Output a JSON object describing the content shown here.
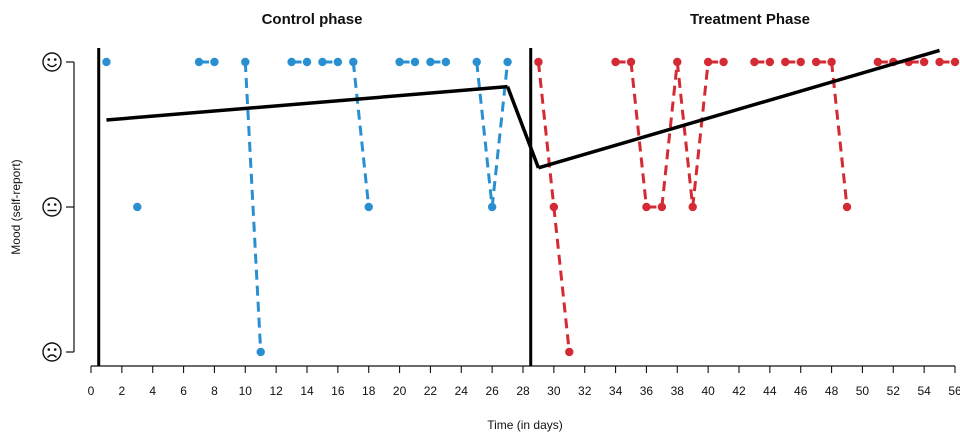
{
  "chart_data": {
    "type": "line",
    "xlabel": "Time (in days)",
    "ylabel": "Mood (self-report)",
    "xlim": [
      0,
      56
    ],
    "x_ticks": [
      0,
      2,
      4,
      6,
      8,
      10,
      12,
      14,
      16,
      18,
      20,
      22,
      24,
      26,
      28,
      30,
      32,
      34,
      36,
      38,
      40,
      42,
      44,
      46,
      48,
      50,
      52,
      54,
      56
    ],
    "y_levels": [
      {
        "value": 1,
        "symbol": "☹",
        "icon": "sad-face-icon"
      },
      {
        "value": 2,
        "symbol": "😐",
        "icon": "neutral-face-icon"
      },
      {
        "value": 3,
        "symbol": "☺",
        "icon": "happy-face-icon"
      }
    ],
    "ylim": [
      1,
      3
    ],
    "phases": [
      {
        "title": "Control phase",
        "start": 0.5,
        "end": 28.5,
        "color": "#2a8fd0"
      },
      {
        "title": "Treatment Phase",
        "start": 28.5,
        "end": 56,
        "color": "#d42a33"
      }
    ],
    "phase_boundaries": [
      0.5,
      28.5
    ],
    "series": [
      {
        "phase": 0,
        "line_style": "dashed",
        "color": "#2a8fd0",
        "points": [
          {
            "x": 1,
            "y": 3
          },
          {
            "x": 3,
            "y": 2
          },
          {
            "x": 7,
            "y": 3
          },
          {
            "x": 8,
            "y": 3
          },
          {
            "x": 10,
            "y": 3
          },
          {
            "x": 11,
            "y": 1
          },
          {
            "x": 13,
            "y": 3
          },
          {
            "x": 14,
            "y": 3
          },
          {
            "x": 15,
            "y": 3
          },
          {
            "x": 16,
            "y": 3
          },
          {
            "x": 17,
            "y": 3
          },
          {
            "x": 18,
            "y": 2
          },
          {
            "x": 20,
            "y": 3
          },
          {
            "x": 21,
            "y": 3
          },
          {
            "x": 22,
            "y": 3
          },
          {
            "x": 23,
            "y": 3
          },
          {
            "x": 25,
            "y": 3
          },
          {
            "x": 26,
            "y": 2
          },
          {
            "x": 27,
            "y": 3
          }
        ],
        "segments": [
          [
            7,
            8
          ],
          [
            10,
            11
          ],
          [
            13,
            14
          ],
          [
            15,
            16
          ],
          [
            17,
            18
          ],
          [
            20,
            21
          ],
          [
            22,
            23
          ],
          [
            25,
            26
          ],
          [
            26,
            27
          ]
        ]
      },
      {
        "phase": 1,
        "line_style": "dashed",
        "color": "#d42a33",
        "points": [
          {
            "x": 29,
            "y": 3
          },
          {
            "x": 30,
            "y": 2
          },
          {
            "x": 31,
            "y": 1
          },
          {
            "x": 34,
            "y": 3
          },
          {
            "x": 35,
            "y": 3
          },
          {
            "x": 36,
            "y": 2
          },
          {
            "x": 37,
            "y": 2
          },
          {
            "x": 38,
            "y": 3
          },
          {
            "x": 39,
            "y": 2
          },
          {
            "x": 40,
            "y": 3
          },
          {
            "x": 41,
            "y": 3
          },
          {
            "x": 43,
            "y": 3
          },
          {
            "x": 44,
            "y": 3
          },
          {
            "x": 45,
            "y": 3
          },
          {
            "x": 46,
            "y": 3
          },
          {
            "x": 47,
            "y": 3
          },
          {
            "x": 48,
            "y": 3
          },
          {
            "x": 49,
            "y": 2
          },
          {
            "x": 51,
            "y": 3
          },
          {
            "x": 52,
            "y": 3
          },
          {
            "x": 53,
            "y": 3
          },
          {
            "x": 54,
            "y": 3
          },
          {
            "x": 55,
            "y": 3
          },
          {
            "x": 56,
            "y": 3
          }
        ],
        "segments": [
          [
            29,
            30
          ],
          [
            30,
            31
          ],
          [
            34,
            35
          ],
          [
            35,
            36
          ],
          [
            36,
            37
          ],
          [
            37,
            38
          ],
          [
            38,
            39
          ],
          [
            39,
            40
          ],
          [
            40,
            41
          ],
          [
            43,
            44
          ],
          [
            45,
            46
          ],
          [
            47,
            48
          ],
          [
            48,
            49
          ],
          [
            51,
            52
          ],
          [
            52,
            53
          ],
          [
            53,
            54
          ],
          [
            55,
            56
          ]
        ]
      }
    ],
    "trend_lines": [
      {
        "color": "#000000",
        "points": [
          {
            "x": 1,
            "y": 2.6
          },
          {
            "x": 27,
            "y": 2.83
          }
        ]
      },
      {
        "color": "#000000",
        "points": [
          {
            "x": 27,
            "y": 2.83
          },
          {
            "x": 29,
            "y": 2.27
          }
        ]
      },
      {
        "color": "#000000",
        "points": [
          {
            "x": 29,
            "y": 2.27
          },
          {
            "x": 55,
            "y": 3.08
          }
        ]
      }
    ]
  }
}
